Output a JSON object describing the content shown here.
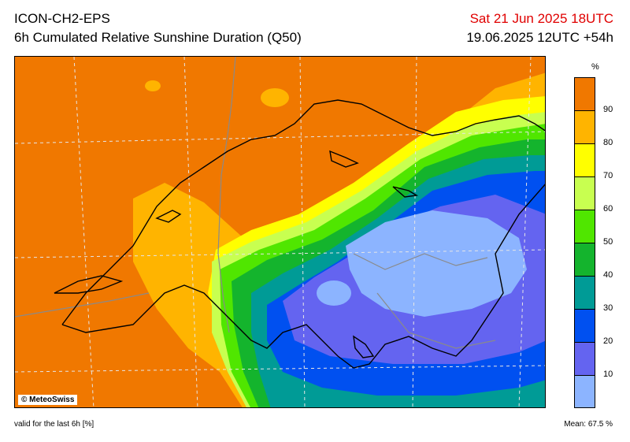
{
  "header": {
    "model": "ICON-CH2-EPS",
    "product": "6h Cumulated Relative Sunshine Duration (Q50)",
    "valid_time": "Sat 21 Jun 2025 18UTC",
    "run_info": "19.06.2025 12UTC +54h"
  },
  "map": {
    "copyright": "© MeteoSwiss"
  },
  "legend": {
    "unit": "%",
    "ticks": [
      "90",
      "80",
      "70",
      "60",
      "50",
      "40",
      "30",
      "20",
      "10"
    ],
    "colors": [
      "#f07800",
      "#ffb400",
      "#ffff00",
      "#c8ff50",
      "#50e600",
      "#14b42d",
      "#009b96",
      "#0050f0",
      "#6464f0",
      "#8cb4ff"
    ]
  },
  "footer": {
    "valid_note": "valid for the last 6h [%]",
    "mean_label": "Mean:",
    "mean_value": "67.5 %"
  },
  "colors": {
    "orange": "#f07800",
    "amber": "#ffb400",
    "yellow": "#ffff00",
    "light_green": "#c8ff50",
    "green": "#50e600",
    "dark_green": "#14b42d",
    "teal": "#009b96",
    "blue": "#0050f0",
    "slate_blue": "#6464f0",
    "light_blue": "#8cb4ff",
    "valid_time_red": "#e00000"
  }
}
